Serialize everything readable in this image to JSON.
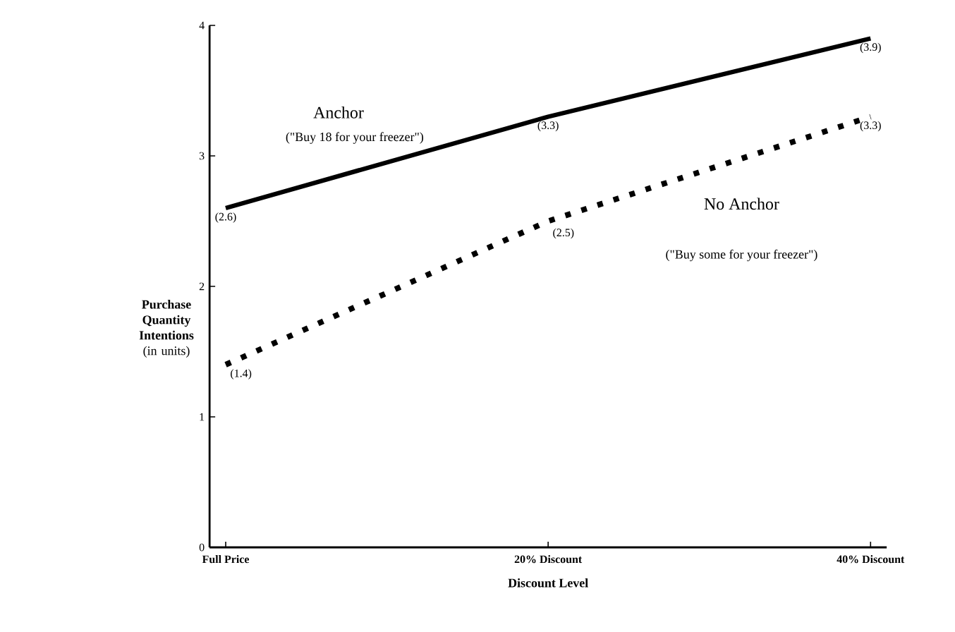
{
  "chart_data": {
    "type": "line",
    "categories": [
      "Full Price",
      "20% Discount",
      "40% Discount"
    ],
    "series": [
      {
        "name": "Anchor",
        "color": "#000000",
        "values": [
          2.6,
          3.3,
          3.9
        ],
        "line_style": "solid",
        "value_labels": [
          "(2.6)",
          "(3.3)",
          "(3.9)"
        ]
      },
      {
        "name": "No Anchor",
        "color": "#000000",
        "values": [
          1.4,
          2.5,
          3.3
        ],
        "line_style": "dotted",
        "value_labels": [
          "(1.4)",
          "(2.5)",
          "(3.3)"
        ]
      }
    ],
    "annotations": [
      "(\"Buy 18 for your freezer\")",
      "(\"Buy some for your freezer\")"
    ],
    "xlabel": "Discount Level",
    "ylabel": "**Purchase Quantity Intentions** (in units)",
    "ylim": [
      0,
      4
    ],
    "yticks": [
      0,
      1,
      2,
      3,
      4
    ],
    "grid": false,
    "legend": false,
    "marker": "none"
  }
}
